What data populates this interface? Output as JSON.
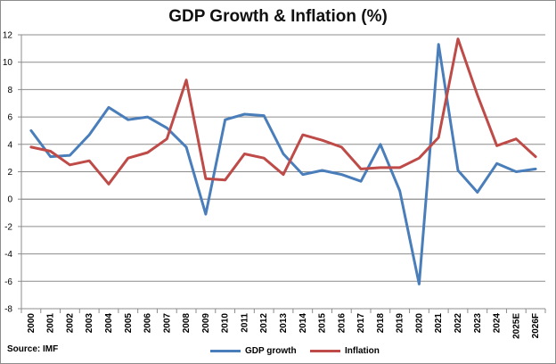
{
  "chart_data": {
    "type": "line",
    "title": "GDP Growth & Inflation (%)",
    "categories": [
      "2000",
      "2001",
      "2002",
      "2003",
      "2004",
      "2005",
      "2006",
      "2007",
      "2008",
      "2009",
      "2010",
      "2011",
      "2012",
      "2013",
      "2014",
      "2015",
      "2016",
      "2017",
      "2018",
      "2019",
      "2020",
      "2021",
      "2022",
      "2023",
      "2024",
      "2025E",
      "2026F"
    ],
    "series": [
      {
        "name": "GDP growth",
        "color": "#4a7ebb",
        "values": [
          5.0,
          3.1,
          3.2,
          4.7,
          6.7,
          5.8,
          6.0,
          5.2,
          3.8,
          -1.1,
          5.8,
          6.2,
          6.1,
          3.3,
          1.8,
          2.1,
          1.8,
          1.3,
          4.0,
          0.6,
          -6.2,
          11.3,
          2.1,
          0.5,
          2.6,
          2.0,
          2.2
        ]
      },
      {
        "name": "Inflation",
        "color": "#be4b48",
        "values": [
          3.8,
          3.5,
          2.5,
          2.8,
          1.1,
          3.0,
          3.4,
          4.4,
          8.7,
          1.5,
          1.4,
          3.3,
          3.0,
          1.8,
          4.7,
          4.3,
          3.8,
          2.2,
          2.3,
          2.3,
          3.0,
          4.5,
          11.7,
          7.6,
          3.9,
          4.4,
          3.1
        ]
      }
    ],
    "yticks": [
      12,
      10,
      8,
      6,
      4,
      2,
      0,
      -2,
      -4,
      -6,
      -8
    ],
    "ylim": [
      -8,
      12
    ],
    "grid": true,
    "legend": "bottom"
  },
  "source": "Source: IMF"
}
